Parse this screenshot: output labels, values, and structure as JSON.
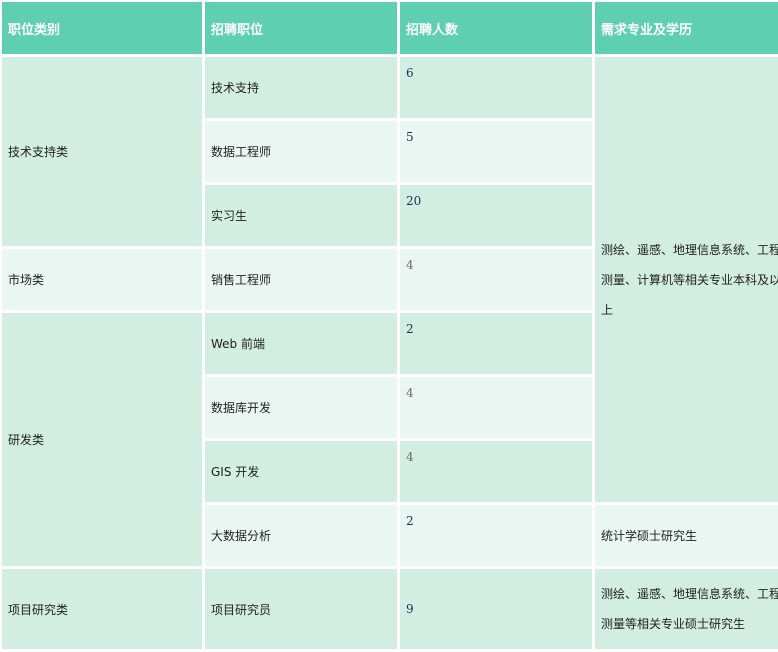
{
  "headers": [
    "职位类别",
    "招聘职位",
    "招聘人数",
    "需求专业及学历"
  ],
  "categories": [
    "技术支持类",
    "市场类",
    "研发类",
    "项目研究类"
  ],
  "positions": [
    {
      "title": "技术支持",
      "count": "6"
    },
    {
      "title": "数据工程师",
      "count": "5"
    },
    {
      "title": "实习生",
      "count": "20"
    },
    {
      "title": "销售工程师",
      "count": "4"
    },
    {
      "title": "Web 前端",
      "count": "2"
    },
    {
      "title": "数据库开发",
      "count": "4"
    },
    {
      "title": "GIS 开发",
      "count": "4"
    },
    {
      "title": "大数据分析",
      "count": "2"
    },
    {
      "title": "项目研究员",
      "count": "9"
    }
  ],
  "requirements": [
    "测绘、遥感、地理信息系统、工程测量、计算机等相关专业本科及以上",
    "统计学硕士研究生",
    "测绘、遥感、地理信息系统、工程测量等相关专业硕士研究生"
  ],
  "colors": {
    "header": "#5ecfb1",
    "row_dark": "#d2ede2",
    "row_light": "#e9f6f1"
  }
}
